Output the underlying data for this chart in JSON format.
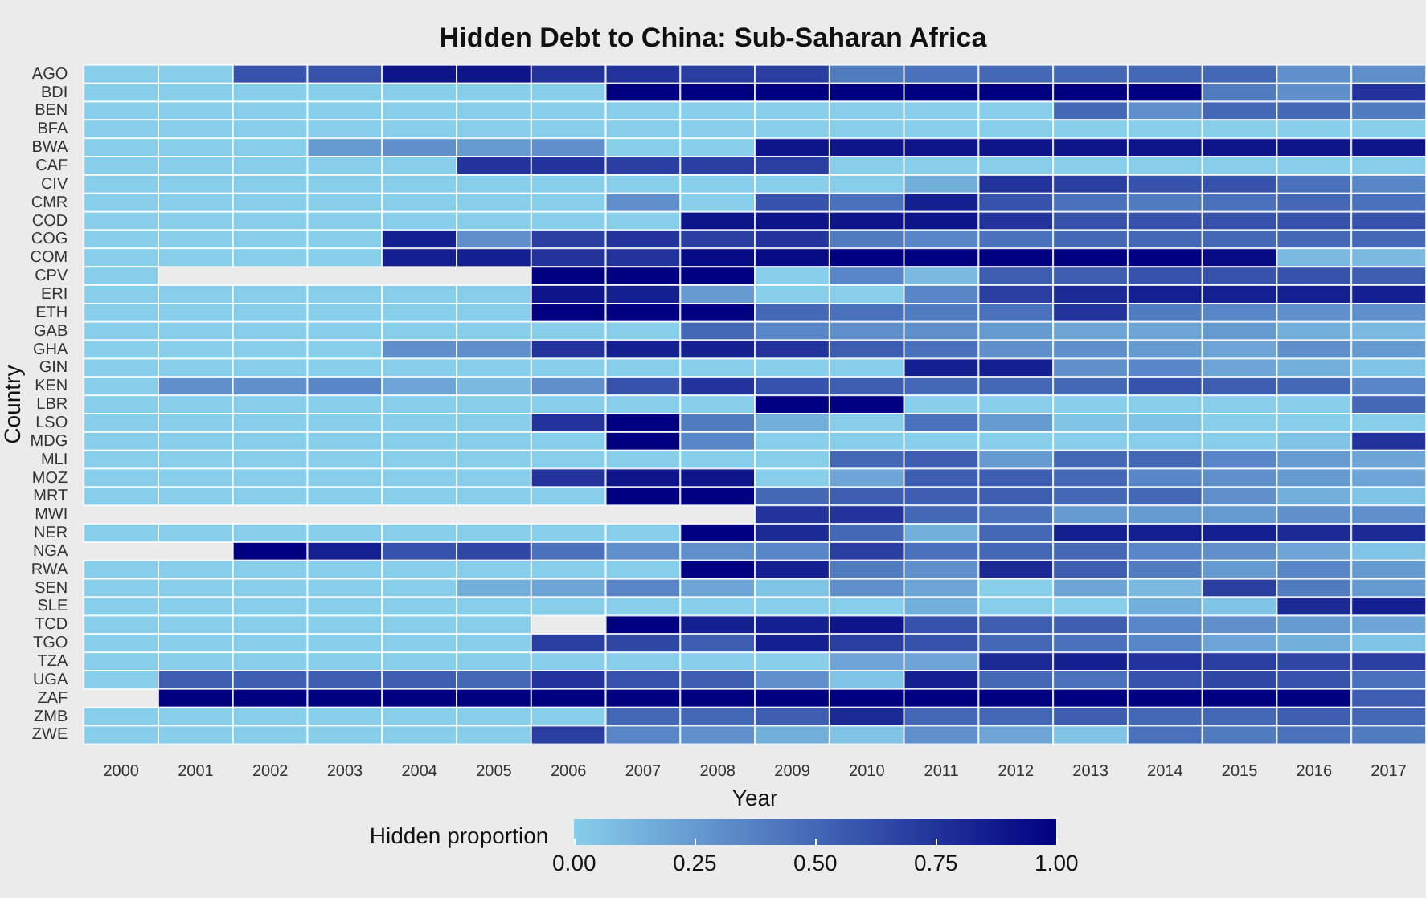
{
  "chart_data": {
    "type": "heatmap",
    "title": "Hidden Debt to China: Sub-Saharan Africa",
    "xlabel": "Year",
    "ylabel": "Country",
    "legend_title": "Hidden proportion",
    "categories": [
      "2000",
      "2001",
      "2002",
      "2003",
      "2004",
      "2005",
      "2006",
      "2007",
      "2008",
      "2009",
      "2010",
      "2011",
      "2012",
      "2013",
      "2014",
      "2015",
      "2016",
      "2017"
    ],
    "y_categories": [
      "AGO",
      "BDI",
      "BEN",
      "BFA",
      "BWA",
      "CAF",
      "CIV",
      "CMR",
      "COD",
      "COG",
      "COM",
      "CPV",
      "ERI",
      "ETH",
      "GAB",
      "GHA",
      "GIN",
      "KEN",
      "LBR",
      "LSO",
      "MDG",
      "MLI",
      "MOZ",
      "MRT",
      "MWI",
      "NER",
      "NGA",
      "RWA",
      "SEN",
      "SLE",
      "TCD",
      "TGO",
      "TZA",
      "UGA",
      "ZAF",
      "ZMB",
      "ZWE"
    ],
    "cells": [
      [
        0,
        0,
        0.6,
        0.6,
        0.9,
        0.9,
        0.75,
        0.75,
        0.7,
        0.7,
        0.4,
        0.45,
        0.5,
        0.5,
        0.5,
        0.5,
        0.3,
        0.3
      ],
      [
        0,
        0,
        0,
        0,
        0,
        0,
        0,
        1,
        1,
        1,
        1,
        1,
        1,
        1,
        1,
        0.4,
        0.3,
        0.75
      ],
      [
        0,
        0,
        0,
        0,
        0,
        0,
        0,
        0,
        0,
        0,
        0,
        0,
        0,
        0.5,
        0.3,
        0.5,
        0.5,
        0.4
      ],
      [
        0,
        0,
        0,
        0,
        0,
        0,
        0,
        0,
        0,
        0,
        0,
        0,
        0,
        0,
        0,
        0,
        0,
        0
      ],
      [
        0,
        0,
        0,
        0.25,
        0.3,
        0.25,
        0.3,
        0,
        0,
        0.9,
        0.9,
        0.9,
        0.9,
        0.9,
        0.9,
        0.9,
        0.9,
        0.9
      ],
      [
        0,
        0,
        0,
        0,
        0,
        0.75,
        0.75,
        0.7,
        0.7,
        0.7,
        0,
        0,
        0,
        0,
        0,
        0,
        0,
        0
      ],
      [
        0,
        0,
        0,
        0,
        0,
        0,
        0,
        0,
        0,
        0,
        0,
        0.15,
        0.75,
        0.7,
        0.6,
        0.6,
        0.45,
        0.35
      ],
      [
        0,
        0,
        0,
        0,
        0,
        0,
        0,
        0.3,
        0,
        0.6,
        0.45,
        0.85,
        0.6,
        0.45,
        0.4,
        0.45,
        0.5,
        0.45
      ],
      [
        0,
        0,
        0,
        0,
        0,
        0,
        0,
        0,
        0.9,
        0.9,
        0.9,
        0.9,
        0.75,
        0.6,
        0.6,
        0.6,
        0.6,
        0.6
      ],
      [
        0,
        0,
        0,
        0,
        0.85,
        0.3,
        0.7,
        0.75,
        0.7,
        0.75,
        0.4,
        0.35,
        0.45,
        0.5,
        0.5,
        0.5,
        0.5,
        0.5
      ],
      [
        0,
        0,
        0,
        0,
        0.85,
        0.85,
        0.75,
        0.75,
        0.95,
        0.95,
        1,
        1,
        1,
        1,
        1,
        0.95,
        0.1,
        0.1
      ],
      [
        0,
        null,
        null,
        null,
        null,
        null,
        1,
        1,
        1,
        0,
        0.35,
        0.1,
        0.55,
        0.55,
        0.6,
        0.6,
        0.6,
        0.55
      ],
      [
        0,
        0,
        0,
        0,
        0,
        0,
        0.9,
        0.85,
        0.25,
        0,
        0,
        0.35,
        0.7,
        0.8,
        0.85,
        0.85,
        0.85,
        0.85
      ],
      [
        0,
        0,
        0,
        0,
        0,
        0,
        1,
        1,
        1,
        0.5,
        0.45,
        0.4,
        0.45,
        0.75,
        0.4,
        0.35,
        0.3,
        0.3
      ],
      [
        0,
        0,
        0,
        0,
        0,
        0,
        0,
        0,
        0.5,
        0.35,
        0.3,
        0.3,
        0.25,
        0.2,
        0.2,
        0.25,
        0.15,
        0.1
      ],
      [
        0,
        0,
        0,
        0,
        0.3,
        0.3,
        0.75,
        0.85,
        0.85,
        0.75,
        0.55,
        0.45,
        0.3,
        0.3,
        0.25,
        0.2,
        0.3,
        0.25
      ],
      [
        0,
        0,
        0,
        0,
        0,
        0,
        0,
        0,
        0,
        0,
        0,
        0.85,
        0.85,
        0.3,
        0.35,
        0.2,
        0.15,
        0.05
      ],
      [
        0,
        0.3,
        0.3,
        0.35,
        0.2,
        0.1,
        0.3,
        0.6,
        0.75,
        0.6,
        0.55,
        0.5,
        0.5,
        0.5,
        0.6,
        0.55,
        0.5,
        0.35
      ],
      [
        0,
        0,
        0,
        0,
        0,
        0,
        0,
        0,
        0,
        1,
        1,
        0,
        0,
        0,
        0,
        0,
        0,
        0.5
      ],
      [
        0,
        0,
        0,
        0,
        0,
        0,
        0.75,
        1,
        0.4,
        0.15,
        0,
        0.45,
        0.25,
        0.05,
        0.05,
        0,
        0,
        0
      ],
      [
        0,
        0,
        0,
        0,
        0,
        0,
        0,
        1,
        0.35,
        0,
        0,
        0,
        0,
        0,
        0,
        0,
        0.05,
        0.75
      ],
      [
        0,
        0,
        0,
        0,
        0,
        0,
        0,
        0,
        0,
        0,
        0.5,
        0.55,
        0.25,
        0.5,
        0.5,
        0.35,
        0.25,
        0.2
      ],
      [
        0,
        0,
        0,
        0,
        0,
        0,
        0.75,
        0.9,
        0.9,
        0,
        0.2,
        0.55,
        0.55,
        0.5,
        0.35,
        0.3,
        0.25,
        0.2
      ],
      [
        0,
        0,
        0,
        0,
        0,
        0,
        0,
        1,
        1,
        0.5,
        0.55,
        0.55,
        0.55,
        0.5,
        0.5,
        0.3,
        0.15,
        0.05
      ],
      [
        null,
        null,
        null,
        null,
        null,
        null,
        null,
        null,
        null,
        0.75,
        0.75,
        0.5,
        0.45,
        0.25,
        0.25,
        0.25,
        0.3,
        0.3
      ],
      [
        0,
        0,
        0,
        0,
        0,
        0,
        0,
        0,
        1,
        0.8,
        0.5,
        0.15,
        0.5,
        0.85,
        0.85,
        0.85,
        0.8,
        0.8
      ],
      [
        null,
        null,
        1,
        0.85,
        0.6,
        0.65,
        0.45,
        0.3,
        0.3,
        0.35,
        0.7,
        0.45,
        0.5,
        0.5,
        0.35,
        0.3,
        0.2,
        0.05
      ],
      [
        0,
        0,
        0,
        0,
        0,
        0,
        0,
        0,
        1,
        0.85,
        0.4,
        0.3,
        0.8,
        0.55,
        0.4,
        0.25,
        0.35,
        0.25
      ],
      [
        0,
        0,
        0,
        0,
        0,
        0.15,
        0.2,
        0.35,
        0.2,
        0.05,
        0.3,
        0.2,
        0,
        0.2,
        0.1,
        0.7,
        0.4,
        0.25
      ],
      [
        0,
        0,
        0,
        0,
        0,
        0,
        0,
        0,
        0,
        0,
        0,
        0.15,
        0,
        0,
        0.15,
        0.05,
        0.8,
        0.85
      ],
      [
        0,
        0,
        0,
        0,
        0,
        0,
        null,
        1,
        0.85,
        0.85,
        0.9,
        0.6,
        0.55,
        0.55,
        0.35,
        0.3,
        0.25,
        0.2
      ],
      [
        0,
        0,
        0,
        0,
        0,
        0,
        0.7,
        0.65,
        0.55,
        0.85,
        0.7,
        0.6,
        0.5,
        0.45,
        0.35,
        0.2,
        0.15,
        0.05
      ],
      [
        0,
        0,
        0,
        0,
        0,
        0,
        0,
        0,
        0,
        0,
        0.2,
        0.2,
        0.8,
        0.85,
        0.75,
        0.7,
        0.65,
        0.7
      ],
      [
        0,
        0.55,
        0.55,
        0.55,
        0.55,
        0.5,
        0.75,
        0.6,
        0.55,
        0.3,
        0.05,
        0.85,
        0.5,
        0.45,
        0.6,
        0.65,
        0.6,
        0.45
      ],
      [
        null,
        1,
        1,
        1,
        1,
        1,
        1,
        1,
        1,
        1,
        1,
        1,
        1,
        1,
        1,
        1,
        1,
        0.55
      ],
      [
        0,
        0,
        0,
        0,
        0,
        0,
        0,
        0.5,
        0.5,
        0.55,
        0.8,
        0.5,
        0.5,
        0.55,
        0.5,
        0.5,
        0.55,
        0.5
      ],
      [
        0,
        0,
        0,
        0,
        0,
        0,
        0.7,
        0.35,
        0.3,
        0.15,
        0.05,
        0.3,
        0.2,
        0.05,
        0.45,
        0.4,
        0.45,
        0.4
      ]
    ],
    "clim": [
      0,
      1
    ],
    "cticks": [
      {
        "value": 0,
        "label": "0.00"
      },
      {
        "value": 0.25,
        "label": "0.25"
      },
      {
        "value": 0.5,
        "label": "0.50"
      },
      {
        "value": 0.75,
        "label": "0.75"
      },
      {
        "value": 1,
        "label": "1.00"
      }
    ]
  }
}
